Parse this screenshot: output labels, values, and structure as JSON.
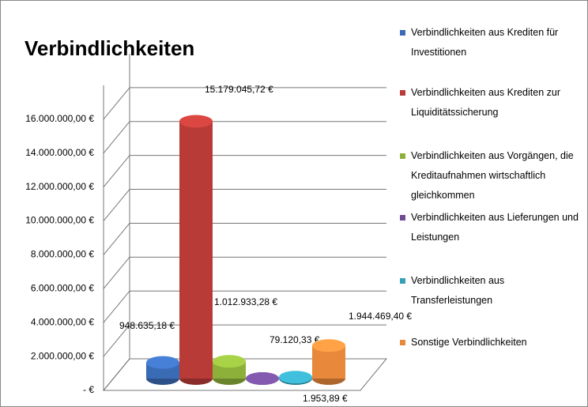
{
  "chart_data": {
    "type": "bar3d",
    "title": "Verbindlichkeiten",
    "categories": [
      null
    ],
    "series": [
      {
        "name": "Verbindlichkeiten aus Krediten für Investitionen",
        "color": "#3a6bb5",
        "values": [
          948635.18
        ],
        "value_labels": [
          "948.635,18 €"
        ]
      },
      {
        "name": "Verbindlichkeiten aus Krediten zur Liquiditätssicherung",
        "color": "#b83b37",
        "values": [
          15179045.72
        ],
        "value_labels": [
          "15.179.045,72 €"
        ]
      },
      {
        "name": "Verbindlichkeiten aus Vorgängen, die Kreditaufnahmen wirtschaftlich gleichkommen",
        "color": "#8db03b",
        "values": [
          1012933.28
        ],
        "value_labels": [
          "1.012.933,28 €"
        ]
      },
      {
        "name": "Verbindlichkeiten aus Lieferungen und Leistungen",
        "color": "#6e4b93",
        "values": [
          1953.89
        ],
        "value_labels": [
          "1.953,89 €"
        ]
      },
      {
        "name": "Verbindlichkeiten aus Transferleistungen",
        "color": "#35a0b8",
        "values": [
          79120.33
        ],
        "value_labels": [
          "79.120,33 €"
        ]
      },
      {
        "name": "Sonstige Verbindlichkeiten",
        "color": "#e8883a",
        "values": [
          1944469.4
        ],
        "value_labels": [
          "1.944.469,40 €"
        ]
      }
    ],
    "ylim": [
      0,
      18000000
    ],
    "yticks": [
      {
        "value": 0,
        "label": "-  €"
      },
      {
        "value": 2000000,
        "label": "2.000.000,00 €"
      },
      {
        "value": 4000000,
        "label": "4.000.000,00 €"
      },
      {
        "value": 6000000,
        "label": "6.000.000,00 €"
      },
      {
        "value": 8000000,
        "label": "8.000.000,00 €"
      },
      {
        "value": 10000000,
        "label": "10.000.000,00 €"
      },
      {
        "value": 12000000,
        "label": "12.000.000,00 €"
      },
      {
        "value": 14000000,
        "label": "14.000.000,00 €"
      },
      {
        "value": 16000000,
        "label": "16.000.000,00 €"
      }
    ],
    "grid": true,
    "legend": "right"
  }
}
